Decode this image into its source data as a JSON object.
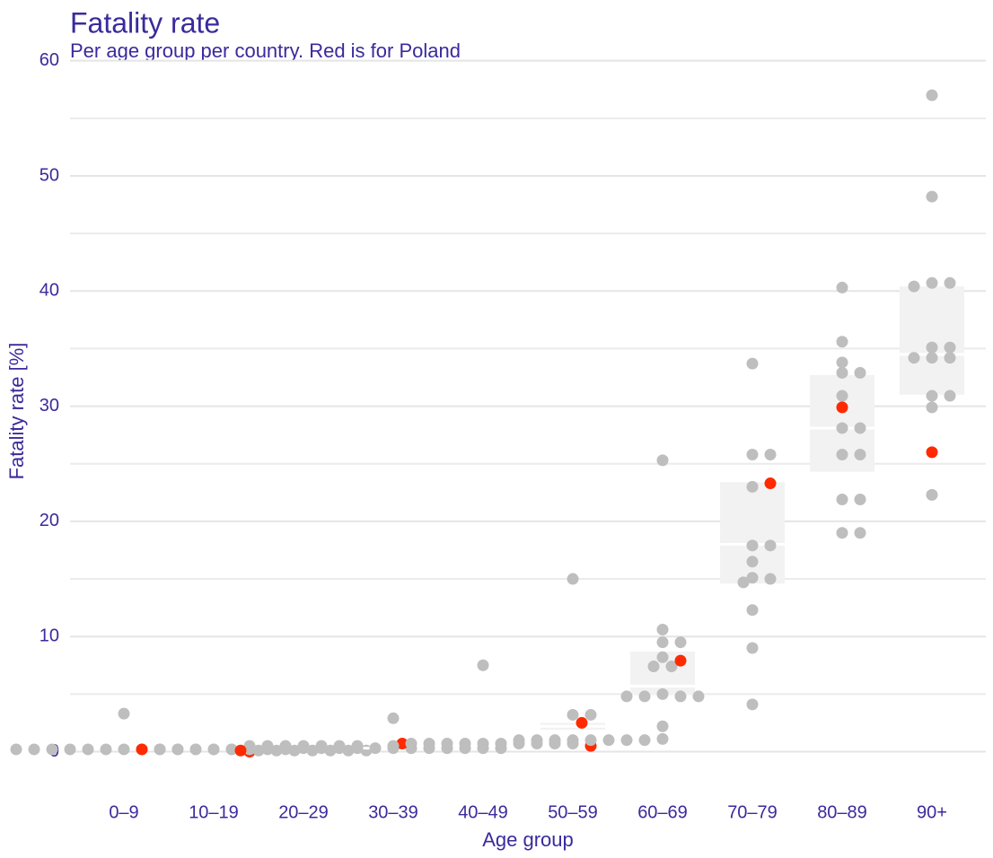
{
  "chart_data": {
    "type": "boxswarm",
    "title": "Fatality rate",
    "subtitle": "Per age group per country. Red is for Poland",
    "x_label": "Age group",
    "y_label": "Fatality rate [%]",
    "categories": [
      "0–9",
      "10–19",
      "20–29",
      "30–39",
      "40–49",
      "50–59",
      "60–69",
      "70–79",
      "80–89",
      "90+"
    ],
    "values": [
      [
        3.3,
        0.2,
        0.2,
        0.2,
        0.2,
        0.2,
        0.2,
        0.2,
        0.2,
        0.2,
        0.2,
        0.2,
        0.2,
        0.2
      ],
      [
        0.2,
        0.2,
        0.2,
        0.2,
        0.2,
        0.2,
        0.2,
        0.2
      ],
      [
        0.5,
        0.5,
        0.5,
        0.5,
        0.5,
        0.5,
        0.5,
        0.1,
        0.1,
        0.1,
        0.1,
        0.1,
        0.1,
        0.1
      ],
      [
        2.9,
        0.3,
        0.3,
        0.3,
        0.3,
        0.3,
        0.3,
        0.3,
        0.3,
        0.3,
        0.3,
        0.3,
        0.3
      ],
      [
        7.5,
        0.7,
        0.7,
        0.7,
        0.7,
        0.7,
        0.7,
        0.7,
        0.7,
        0.7,
        0.7,
        0.5
      ],
      [
        15.0,
        3.2,
        3.2,
        1.0,
        1.0,
        1.0,
        1.0,
        1.0,
        1.0,
        1.0,
        1.0
      ],
      [
        25.3,
        10.6,
        9.5,
        9.5,
        8.2,
        7.4,
        7.4,
        5.0,
        4.8,
        4.8,
        4.8,
        4.8,
        2.2,
        1.1
      ],
      [
        33.7,
        25.8,
        25.8,
        23.0,
        17.9,
        17.9,
        16.5,
        15.1,
        15.0,
        14.7,
        12.3,
        9.0,
        4.1
      ],
      [
        40.3,
        35.6,
        33.8,
        32.9,
        32.9,
        30.9,
        28.1,
        28.1,
        25.8,
        25.8,
        21.9,
        21.9,
        19.0,
        19.0
      ],
      [
        57.0,
        48.2,
        40.7,
        40.7,
        40.4,
        35.1,
        35.1,
        34.2,
        34.2,
        34.2,
        30.9,
        30.9,
        29.9,
        22.3
      ]
    ],
    "highlight_values": [
      0.0,
      0.2,
      0.1,
      0.7,
      0.5,
      2.5,
      7.9,
      23.3,
      29.9,
      26.0
    ],
    "boxes": [
      {
        "q1": 0.15,
        "median": 0.2,
        "q3": 0.25
      },
      {
        "q1": 0.15,
        "median": 0.2,
        "q3": 0.25
      },
      {
        "q1": 0.1,
        "median": 0.3,
        "q3": 0.5
      },
      {
        "q1": 0.25,
        "median": 0.3,
        "q3": 0.35
      },
      {
        "q1": 0.6,
        "median": 0.7,
        "q3": 0.75
      },
      {
        "q1": 1.9,
        "median": 2.2,
        "q3": 2.5
      },
      {
        "q1": 4.9,
        "median": 5.7,
        "q3": 8.7
      },
      {
        "q1": 14.6,
        "median": 18.0,
        "q3": 23.4
      },
      {
        "q1": 24.3,
        "median": 28.1,
        "q3": 32.7
      },
      {
        "q1": 31.0,
        "median": 34.5,
        "q3": 40.4
      }
    ],
    "point_color": "#bebebe",
    "highlight_color": "#ff2a00",
    "box_color": "#f2f2f2",
    "ylim": [
      -3,
      62
    ],
    "yticks": [
      0,
      10,
      20,
      30,
      40,
      50,
      60
    ],
    "yminor": [
      5,
      15,
      25,
      35,
      45,
      55
    ],
    "grid": true
  }
}
